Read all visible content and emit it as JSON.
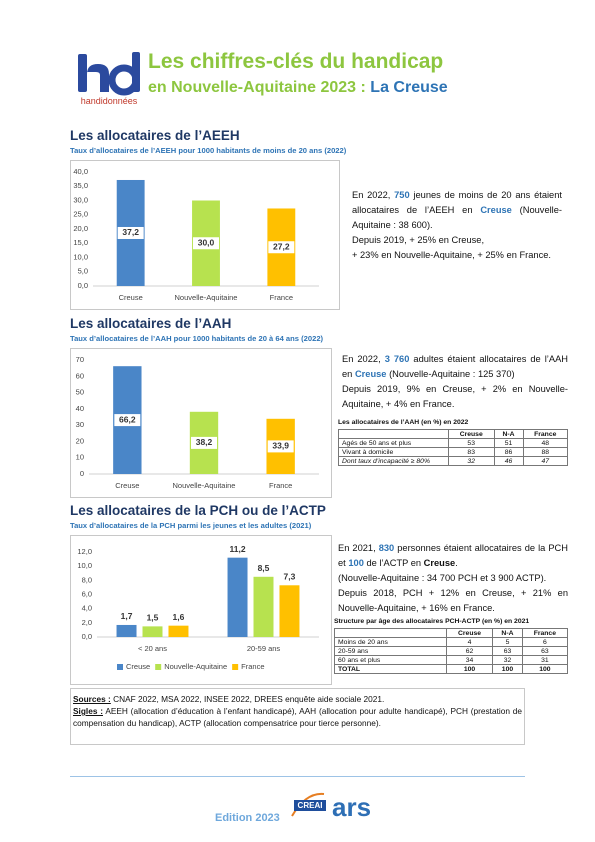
{
  "header": {
    "logo_text": "handidonnées",
    "title": "Les chiffres-clés du handicap",
    "subtitle": "en Nouvelle-Aquitaine 2023 :",
    "subtitle_place": "La Creuse"
  },
  "sections": [
    {
      "title": "Les allocataires de l’AEEH",
      "subtitle": "Taux d’allocataires de l’AEEH pour 1000 habitants de moins de 20 ans (2022)",
      "chart": {
        "type": "bar",
        "categories": [
          "Creuse",
          "Nouvelle-Aquitaine",
          "France"
        ],
        "values": [
          37.2,
          30.0,
          27.2
        ],
        "value_labels": [
          "37,2",
          "30,0",
          "27,2"
        ],
        "colors": [
          "#4a86c8",
          "#b7e24f",
          "#ffc000"
        ],
        "ylim": [
          0,
          40
        ],
        "yticks": [
          {
            "value": 0,
            "label": "0,0"
          },
          {
            "value": 5,
            "label": "5,0"
          },
          {
            "value": 10,
            "label": "10,0"
          },
          {
            "value": 15,
            "label": "15,0"
          },
          {
            "value": 20,
            "label": "20,0"
          },
          {
            "value": 25,
            "label": "25,0"
          },
          {
            "value": 30,
            "label": "30,0"
          },
          {
            "value": 35,
            "label": "35,0"
          },
          {
            "value": 40,
            "label": "40,0"
          }
        ],
        "grid": false
      },
      "paragraphs": [
        [
          {
            "t": "En 2022,"
          },
          {
            "t": "750",
            "style": "blue"
          },
          {
            "t": "jeunes de moins de 20 ans étaient allocataires de l’AEEH en"
          },
          {
            "t": "Creuse",
            "style": "blue"
          },
          {
            "t": "(Nouvelle-Aquitaine : 38 600)."
          }
        ],
        [
          {
            "t": "Depuis 2019, + 25% en Creuse,"
          }
        ],
        [
          {
            "t": "+ 23% en Nouvelle-Aquitaine, + 25% en France."
          }
        ]
      ]
    },
    {
      "title": "Les allocataires de l’AAH",
      "subtitle": "Taux d’allocataires de l’AAH pour 1000 habitants de 20 à 64 ans (2022)",
      "chart": {
        "type": "bar",
        "categories": [
          "Creuse",
          "Nouvelle-Aquitaine",
          "France"
        ],
        "values": [
          66.2,
          38.2,
          33.9
        ],
        "value_labels": [
          "66,2",
          "38,2",
          "33,9"
        ],
        "colors": [
          "#4a86c8",
          "#b7e24f",
          "#ffc000"
        ],
        "ylim": [
          0,
          70
        ],
        "yticks": [
          0,
          10,
          20,
          30,
          40,
          50,
          60,
          70
        ],
        "grid": false
      },
      "paragraphs": [
        [
          {
            "t": "En 2022,"
          },
          {
            "t": "3 760",
            "style": "blue"
          },
          {
            "t": "adultes étaient allocataires de l’AAH en"
          },
          {
            "t": "Creuse",
            "style": "blue"
          },
          {
            "t": "(Nouvelle-Aquitaine : 125 370)"
          }
        ],
        [
          {
            "t": "Depuis 2019, 9% en Creuse, + 2% en Nouvelle-Aquitaine, + 4% en France."
          }
        ]
      ],
      "table": {
        "title": "Les allocataires de l’AAH (en %) en 2022",
        "columns": [
          "Creuse",
          "N-A",
          "France"
        ],
        "rows": [
          {
            "label": "Agés de 50 ans et plus",
            "values": [
              53,
              51,
              48
            ]
          },
          {
            "label": "Vivant à domicile",
            "values": [
              83,
              86,
              88
            ]
          },
          {
            "label": "Dont taux d’incapacité ≥ 80%",
            "values": [
              32,
              46,
              47
            ],
            "style": "italic"
          }
        ]
      }
    },
    {
      "title": "Les allocataires de la PCH ou de l’ACTP",
      "subtitle": "Taux d’allocataires de la PCH parmi les jeunes et les adultes (2021)",
      "chart": {
        "type": "bar",
        "categories": [
          "< 20 ans",
          "20-59 ans"
        ],
        "series": [
          {
            "name": "Creuse",
            "color": "#4a86c8",
            "values": [
              1.7,
              11.2
            ],
            "value_labels": [
              "1,7",
              "11,2"
            ]
          },
          {
            "name": "Nouvelle-Aquitaine",
            "color": "#b7e24f",
            "values": [
              1.5,
              8.5
            ],
            "value_labels": [
              "1,5",
              "8,5"
            ]
          },
          {
            "name": "France",
            "color": "#ffc000",
            "values": [
              1.6,
              7.3
            ],
            "value_labels": [
              "1,6",
              "7,3"
            ]
          }
        ],
        "ylim": [
          0,
          12
        ],
        "yticks": [
          {
            "value": 0,
            "label": "0,0"
          },
          {
            "value": 2,
            "label": "2,0"
          },
          {
            "value": 4,
            "label": "4,0"
          },
          {
            "value": 6,
            "label": "6,0"
          },
          {
            "value": 8,
            "label": "8,0"
          },
          {
            "value": 10,
            "label": "10,0"
          },
          {
            "value": 12,
            "label": "12,0"
          }
        ],
        "grid": false,
        "legend": "bottom"
      },
      "paragraphs": [
        [
          {
            "t": "En 2021,"
          },
          {
            "t": "830",
            "style": "blue"
          },
          {
            "t": "personnes étaient allocataires de la PCH et"
          },
          {
            "t": "100",
            "style": "blue"
          },
          {
            "t": "de l’ACTP en"
          },
          {
            "t": "Creuse",
            "style": "bold"
          },
          {
            "t": "."
          }
        ],
        [
          {
            "t": "(Nouvelle-Aquitaine : 34 700 PCH et 3 900 ACTP)."
          }
        ],
        [
          {
            "t": "Depuis 2018, PCH + 12% en Creuse, + 21% en Nouvelle-Aquitaine, + 16% en France."
          }
        ]
      ],
      "table": {
        "title": "Structure par âge des allocataires PCH-ACTP (en %) en 2021",
        "columns": [
          "Creuse",
          "N-A",
          "France"
        ],
        "rows": [
          {
            "label": "Moins de 20 ans",
            "values": [
              4,
              5,
              6
            ]
          },
          {
            "label": "20-59 ans",
            "values": [
              62,
              63,
              63
            ]
          },
          {
            "label": "60 ans et plus",
            "values": [
              34,
              32,
              31
            ]
          },
          {
            "label": "TOTAL",
            "values": [
              100,
              100,
              100
            ],
            "style": "bold"
          }
        ]
      }
    }
  ],
  "footer": {
    "sources_label": "Sources :",
    "sources": "CNAF 2022, MSA 2022, INSEE 2022, DREES enquête aide sociale 2021.",
    "sigles_label": "Sigles :",
    "sigles": "AEEH (allocation d’éducation à l’enfant handicapé), AAH (allocation pour adulte handicapé), PCH (prestation de compensation du handicap), ACTP (allocation compensatrice pour tierce personne).",
    "edition": "Edition 2023",
    "logo_creai": "CREAI",
    "logo_ars": "ars"
  }
}
